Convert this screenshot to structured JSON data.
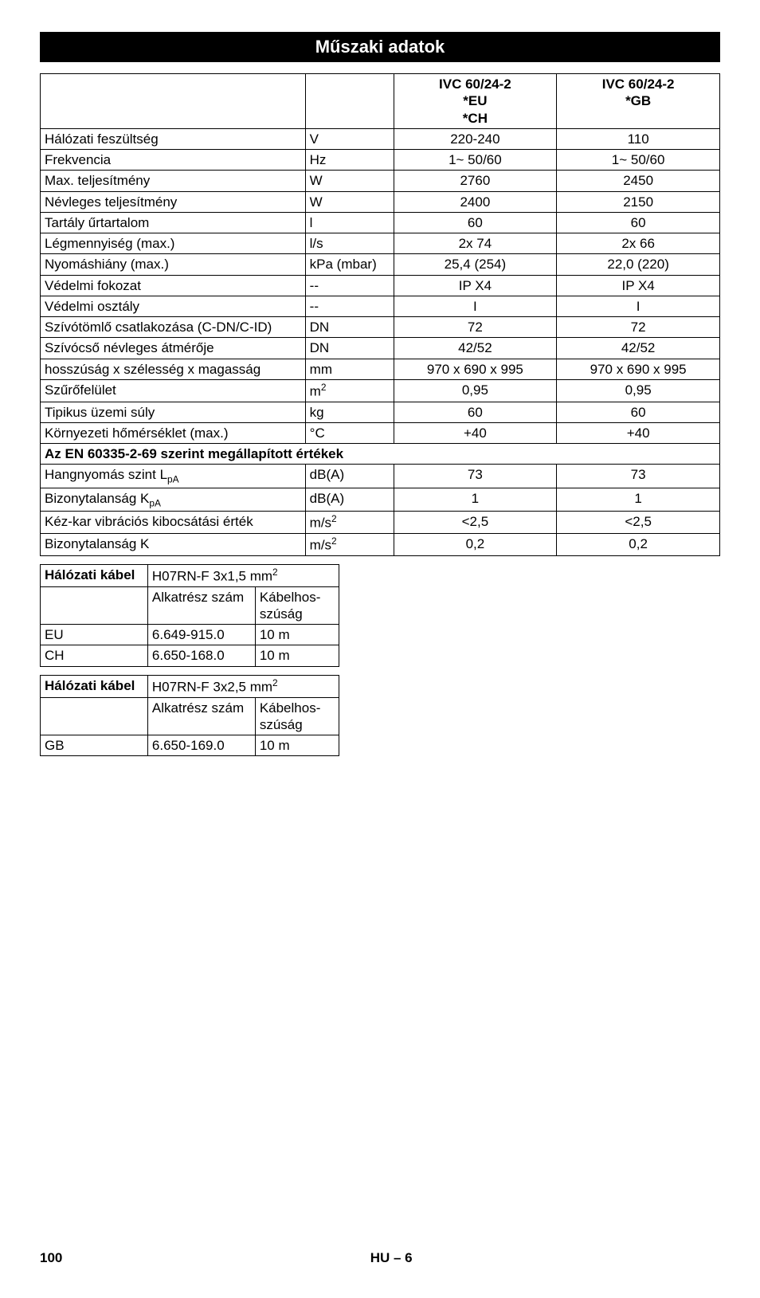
{
  "title": "Műszaki adatok",
  "header": {
    "col3_l1": "IVC 60/24-2",
    "col3_l2": "*EU",
    "col3_l3": "*CH",
    "col4_l1": "IVC 60/24-2",
    "col4_l2": "*GB"
  },
  "rows": [
    {
      "label": "Hálózati feszültség",
      "unit": "V",
      "v1": "220-240",
      "v2": "110"
    },
    {
      "label": "Frekvencia",
      "unit": "Hz",
      "v1": "1~ 50/60",
      "v2": "1~ 50/60"
    },
    {
      "label": "Max. teljesítmény",
      "unit": "W",
      "v1": "2760",
      "v2": "2450"
    },
    {
      "label": "Névleges teljesítmény",
      "unit": "W",
      "v1": "2400",
      "v2": "2150"
    },
    {
      "label": "Tartály űrtartalom",
      "unit": "l",
      "v1": "60",
      "v2": "60"
    },
    {
      "label": "Légmennyiség (max.)",
      "unit": "l/s",
      "v1": "2x 74",
      "v2": "2x 66"
    },
    {
      "label": "Nyomáshiány (max.)",
      "unit": "kPa (mbar)",
      "v1": "25,4 (254)",
      "v2": "22,0 (220)"
    },
    {
      "label": "Védelmi fokozat",
      "unit": "--",
      "v1": "IP X4",
      "v2": "IP X4"
    },
    {
      "label": "Védelmi osztály",
      "unit": "--",
      "v1": "I",
      "v2": "I"
    },
    {
      "label": "Szívótömlő csatlakozása (C-DN/C-ID)",
      "unit": "DN",
      "v1": "72",
      "v2": "72"
    },
    {
      "label": "Szívócső névleges átmérője",
      "unit": "DN",
      "v1": "42/52",
      "v2": "42/52"
    },
    {
      "label": "hosszúság x szélesség x magasság",
      "unit": "mm",
      "v1": "970 x 690 x 995",
      "v2": "970 x 690 x 995"
    },
    {
      "label": "Szűrőfelület",
      "unit_html": "m<sup>2</sup>",
      "v1": "0,95",
      "v2": "0,95"
    },
    {
      "label": "Tipikus üzemi súly",
      "unit": "kg",
      "v1": "60",
      "v2": "60"
    },
    {
      "label": "Környezeti hőmérséklet (max.)",
      "unit": "°C",
      "v1": "+40",
      "v2": "+40"
    }
  ],
  "section": "Az EN 60335-2-69 szerint megállapított értékek",
  "rows2": [
    {
      "label_html": "Hangnyomás szint L<sub>pA</sub>",
      "unit": "dB(A)",
      "v1": "73",
      "v2": "73"
    },
    {
      "label_html": "Bizonytalanság K<sub>pA</sub>",
      "unit": "dB(A)",
      "v1": "1",
      "v2": "1"
    },
    {
      "label": "Kéz-kar vibrációs kibocsátási érték",
      "unit_html": "m/s<sup>2</sup>",
      "v1": "<2,5",
      "v2": "<2,5"
    },
    {
      "label": "Bizonytalanság K",
      "unit_html": "m/s<sup>2</sup>",
      "v1": "0,2",
      "v2": "0,2"
    }
  ],
  "cable1": {
    "head": "Hálózati kábel",
    "spec_html": "H07RN-F 3x1,5 mm<sup>2</sup>",
    "col2": "Alkatrész szám",
    "col3": "Kábelhos-szúság",
    "rows": [
      {
        "c1": "EU",
        "c2": "6.649-915.0",
        "c3": "10 m"
      },
      {
        "c1": "CH",
        "c2": "6.650-168.0",
        "c3": "10 m"
      }
    ]
  },
  "cable2": {
    "head": "Hálózati kábel",
    "spec_html": "H07RN-F 3x2,5 mm<sup>2</sup>",
    "col2": "Alkatrész szám",
    "col3": "Kábelhos-szúság",
    "rows": [
      {
        "c1": "GB",
        "c2": "6.650-169.0",
        "c3": "10 m"
      }
    ]
  },
  "footer": {
    "page": "100",
    "code": "HU – 6"
  }
}
